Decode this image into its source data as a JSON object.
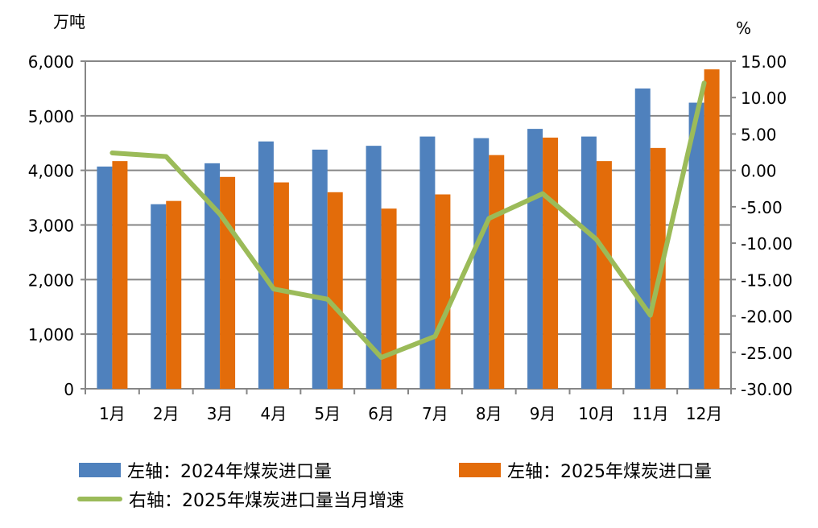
{
  "chart_data": {
    "type": "bar+line",
    "categories": [
      "1月",
      "2月",
      "3月",
      "4月",
      "5月",
      "6月",
      "7月",
      "8月",
      "9月",
      "10月",
      "11月",
      "12月"
    ],
    "left_axis": {
      "unit": "万吨",
      "ylim": [
        0,
        6000
      ],
      "ticks": [
        "0",
        "1,000",
        "2,000",
        "3,000",
        "4,000",
        "5,000",
        "6,000"
      ]
    },
    "right_axis": {
      "unit": "%",
      "ylim": [
        -30,
        15
      ],
      "ticks": [
        "-30.00",
        "-25.00",
        "-20.00",
        "-15.00",
        "-10.00",
        "-5.00",
        "0.00",
        "5.00",
        "10.00",
        "15.00"
      ]
    },
    "series": [
      {
        "name": "左轴：2024年煤炭进口量",
        "type": "bar",
        "axis": "left",
        "color": "#4f81bd",
        "values": [
          4070,
          3380,
          4130,
          4530,
          4380,
          4450,
          4620,
          4590,
          4760,
          4620,
          5500,
          5240
        ]
      },
      {
        "name": "左轴：2025年煤炭进口量",
        "type": "bar",
        "axis": "left",
        "color": "#e36c0a",
        "values": [
          4170,
          3440,
          3880,
          3780,
          3600,
          3300,
          3560,
          4280,
          4600,
          4170,
          4410,
          5850
        ]
      },
      {
        "name": "右轴：2025年煤炭进口量当月增速",
        "type": "line",
        "axis": "right",
        "color": "#9bbb59",
        "values": [
          2.4,
          1.9,
          -6.0,
          -16.3,
          -17.7,
          -25.7,
          -22.8,
          -6.6,
          -3.2,
          -9.5,
          -19.9,
          12.0
        ]
      }
    ],
    "grid": true,
    "legend": "bottom"
  }
}
